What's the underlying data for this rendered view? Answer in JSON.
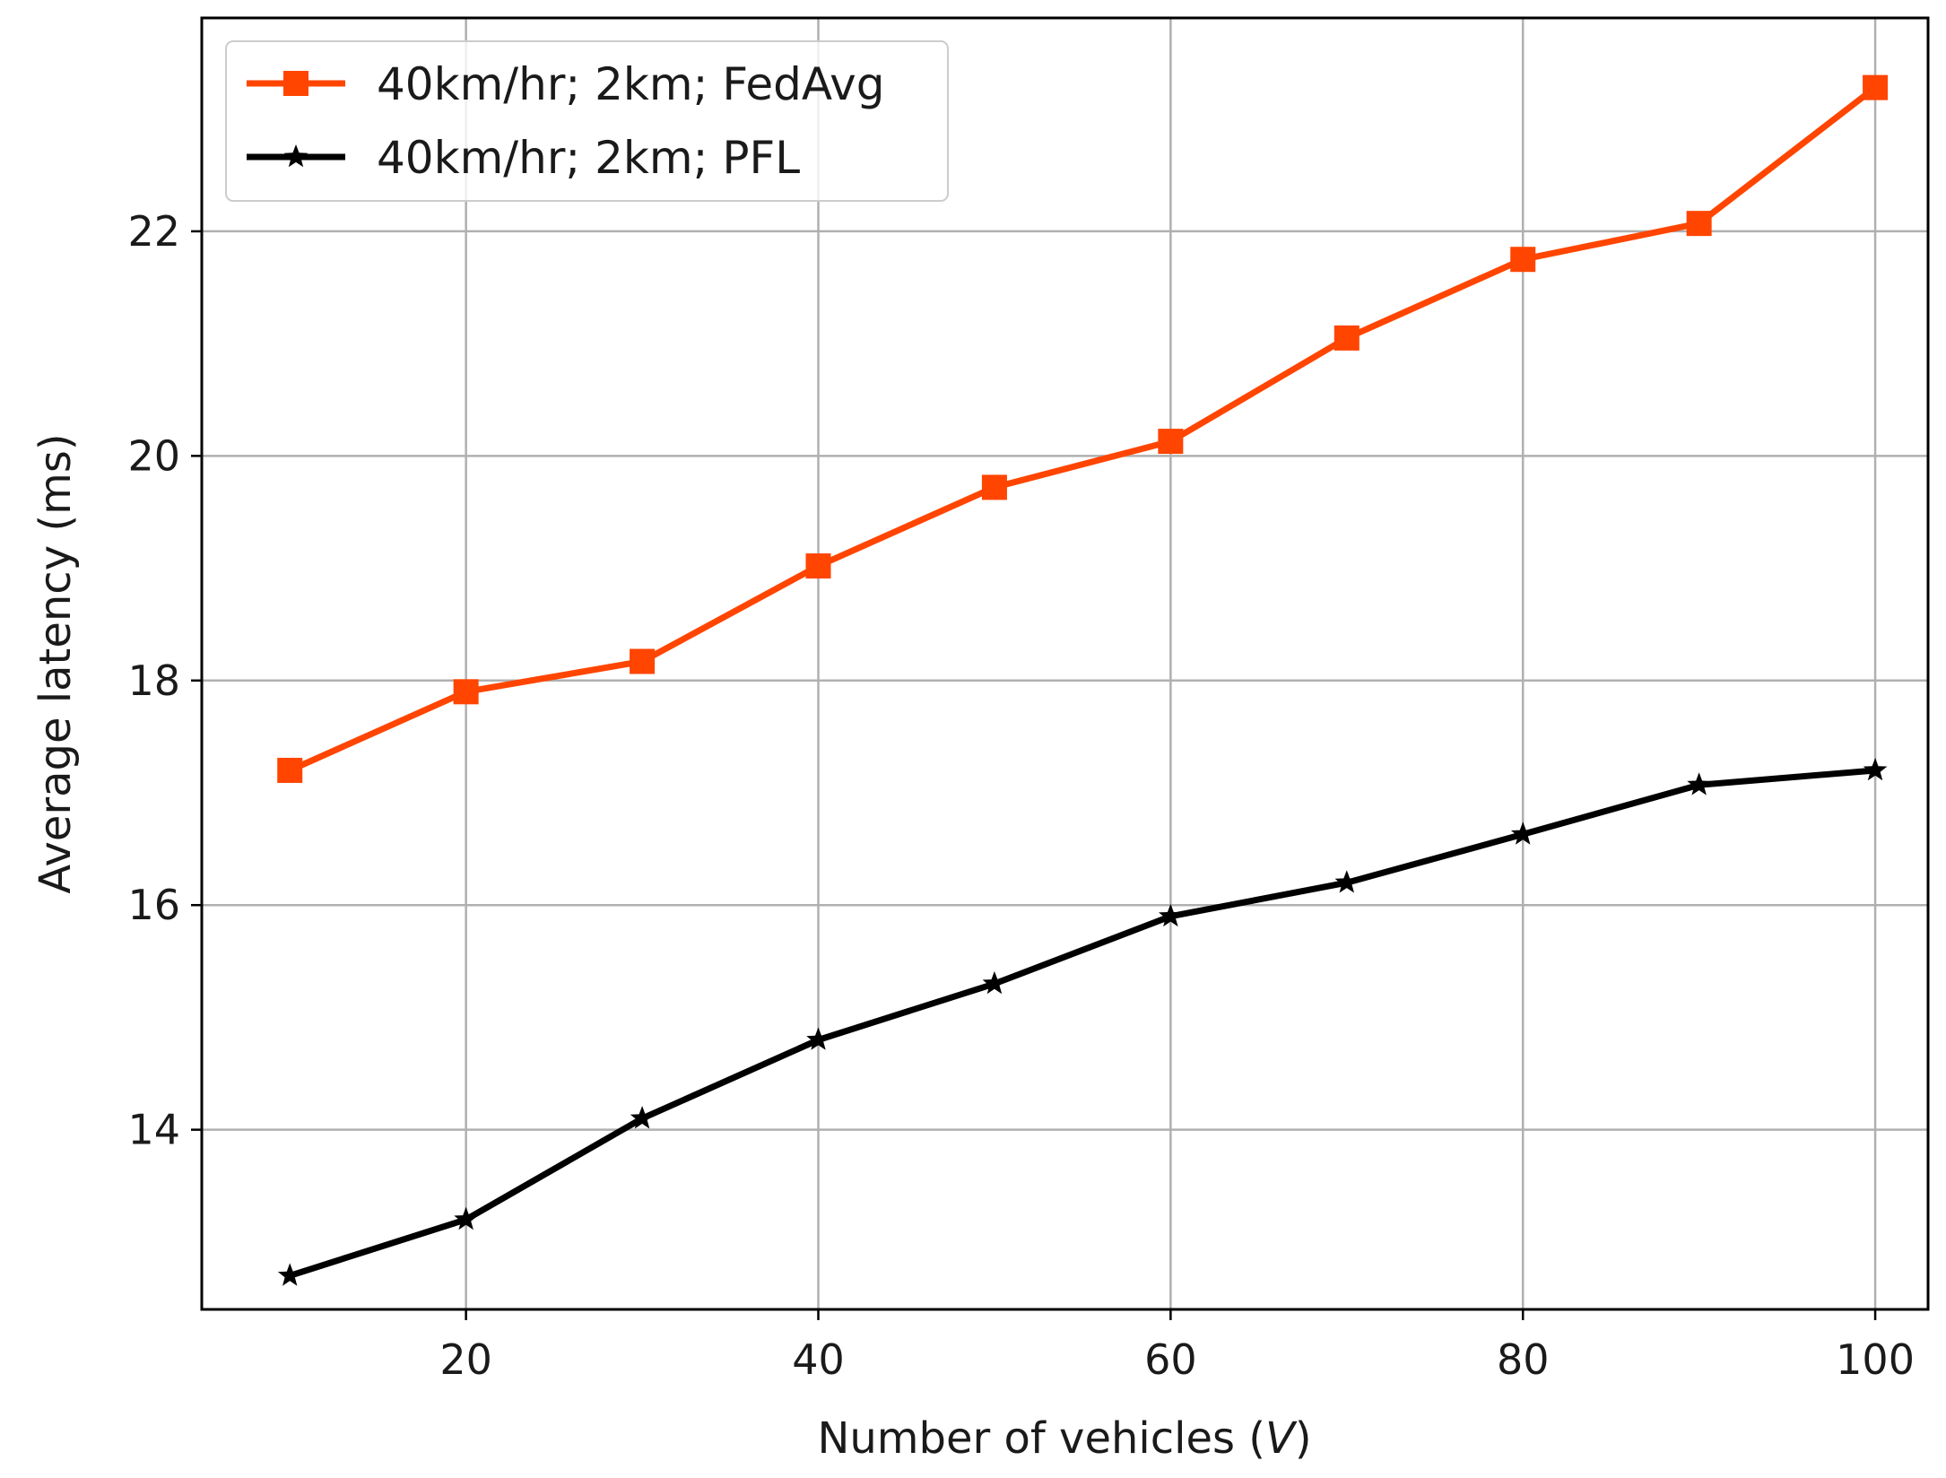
{
  "chart_data": {
    "type": "line",
    "title": "",
    "xlabel_main": "Number of vehicles (",
    "xlabel_var": "V",
    "xlabel_end": ")",
    "ylabel": "Average latency (ms)",
    "xlim": [
      5,
      103
    ],
    "ylim": [
      12.4,
      23.9
    ],
    "x_ticks": [
      20,
      40,
      60,
      80,
      100
    ],
    "y_ticks": [
      14,
      16,
      18,
      20,
      22
    ],
    "grid": true,
    "legend_position": "top-left",
    "x": [
      10,
      20,
      30,
      40,
      50,
      60,
      70,
      80,
      90,
      100
    ],
    "series": [
      {
        "name": "40km/hr; 2km; FedAvg",
        "color": "#ff4500",
        "marker": "square",
        "values": [
          17.2,
          17.9,
          18.17,
          19.02,
          19.72,
          20.13,
          21.05,
          21.75,
          22.07,
          23.28
        ]
      },
      {
        "name": "40km/hr; 2km; PFL",
        "color": "#000000",
        "marker": "star",
        "values": [
          12.7,
          13.2,
          14.1,
          14.8,
          15.3,
          15.9,
          16.2,
          16.63,
          17.07,
          17.2
        ]
      }
    ]
  }
}
